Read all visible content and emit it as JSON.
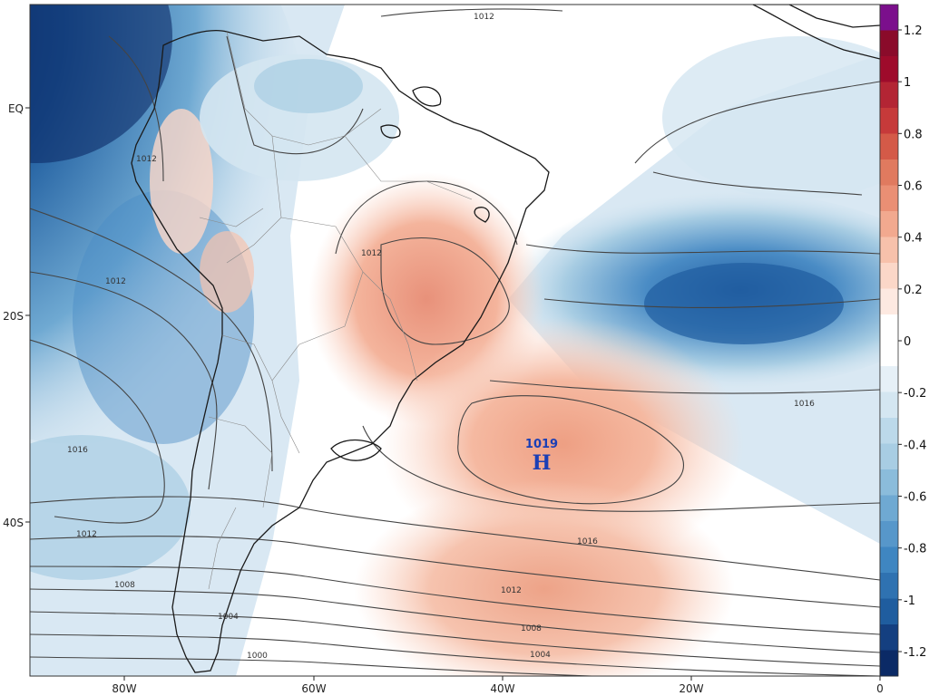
{
  "axes": {
    "lat_labels": [
      "EQ",
      "20S",
      "40S"
    ],
    "lon_labels": [
      "80W",
      "60W",
      "40W",
      "20W",
      "0"
    ]
  },
  "high_center": {
    "value": "1019",
    "letter": "H"
  },
  "isobar_labels": [
    "1012",
    "1012",
    "1012",
    "1016",
    "1012",
    "1008",
    "1004",
    "1000",
    "1016",
    "1016",
    "1012",
    "1008",
    "1004"
  ],
  "colorbar": {
    "ticks": [
      "1.2",
      "1",
      "0.8",
      "0.6",
      "0.4",
      "0.2",
      "0",
      "-0.2",
      "-0.4",
      "-0.6",
      "-0.8",
      "-1",
      "-1.2"
    ],
    "colors": {
      "top": "#7b0f8c",
      "dark_red": "#9e0b2b",
      "red": "#c63a3a",
      "orange_red": "#e07a5f",
      "salmon": "#f2a98f",
      "light_salmon": "#fbd7c8",
      "white": "#ffffff",
      "light_blue": "#d4e6f1",
      "blue1": "#a8cde3",
      "blue2": "#6fa9d2",
      "blue3": "#3f86c1",
      "blue4": "#1f5d9f",
      "navy": "#0b2a66"
    }
  }
}
